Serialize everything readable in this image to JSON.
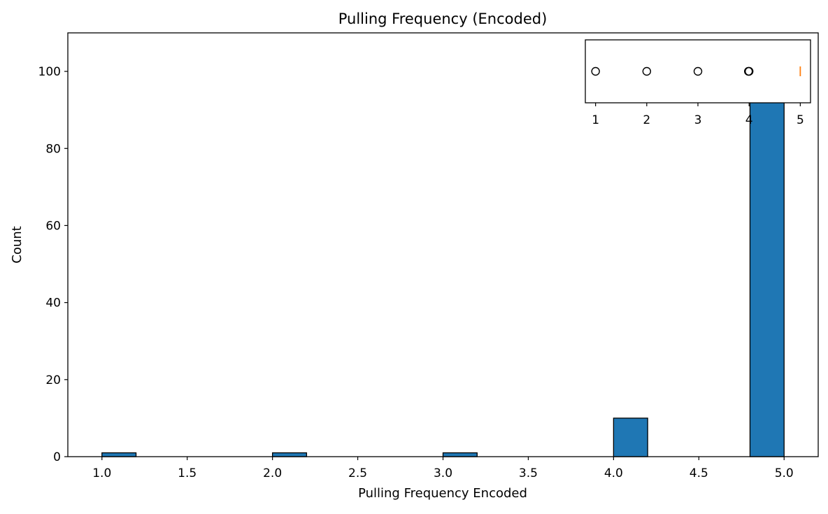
{
  "chart_data": [
    {
      "type": "histogram",
      "title": "Pulling Frequency (Encoded)",
      "xlabel": "Pulling Frequency Encoded",
      "ylabel": "Count",
      "xlim": [
        0.8,
        5.2
      ],
      "ylim": [
        0,
        110
      ],
      "x_ticks": [
        "1.0",
        "1.5",
        "2.0",
        "2.5",
        "3.0",
        "3.5",
        "4.0",
        "4.5",
        "5.0"
      ],
      "y_ticks": [
        "0",
        "20",
        "40",
        "60",
        "80",
        "100"
      ],
      "bins": [
        {
          "start": 1.0,
          "end": 1.2,
          "count": 1
        },
        {
          "start": 2.0,
          "end": 2.2,
          "count": 1
        },
        {
          "start": 3.0,
          "end": 3.2,
          "count": 1
        },
        {
          "start": 4.0,
          "end": 4.2,
          "count": 10
        },
        {
          "start": 4.8,
          "end": 5.0,
          "count": 106
        }
      ],
      "bar_color": "#1f77b4",
      "edge_color": "#000000"
    },
    {
      "type": "boxplot",
      "orientation": "horizontal",
      "x_ticks": [
        "1",
        "2",
        "3",
        "4",
        "5"
      ],
      "xlim": [
        0.8,
        5.2
      ],
      "median": 5,
      "outliers": [
        1,
        2,
        3,
        4
      ],
      "median_color": "#ff7f0e"
    }
  ]
}
